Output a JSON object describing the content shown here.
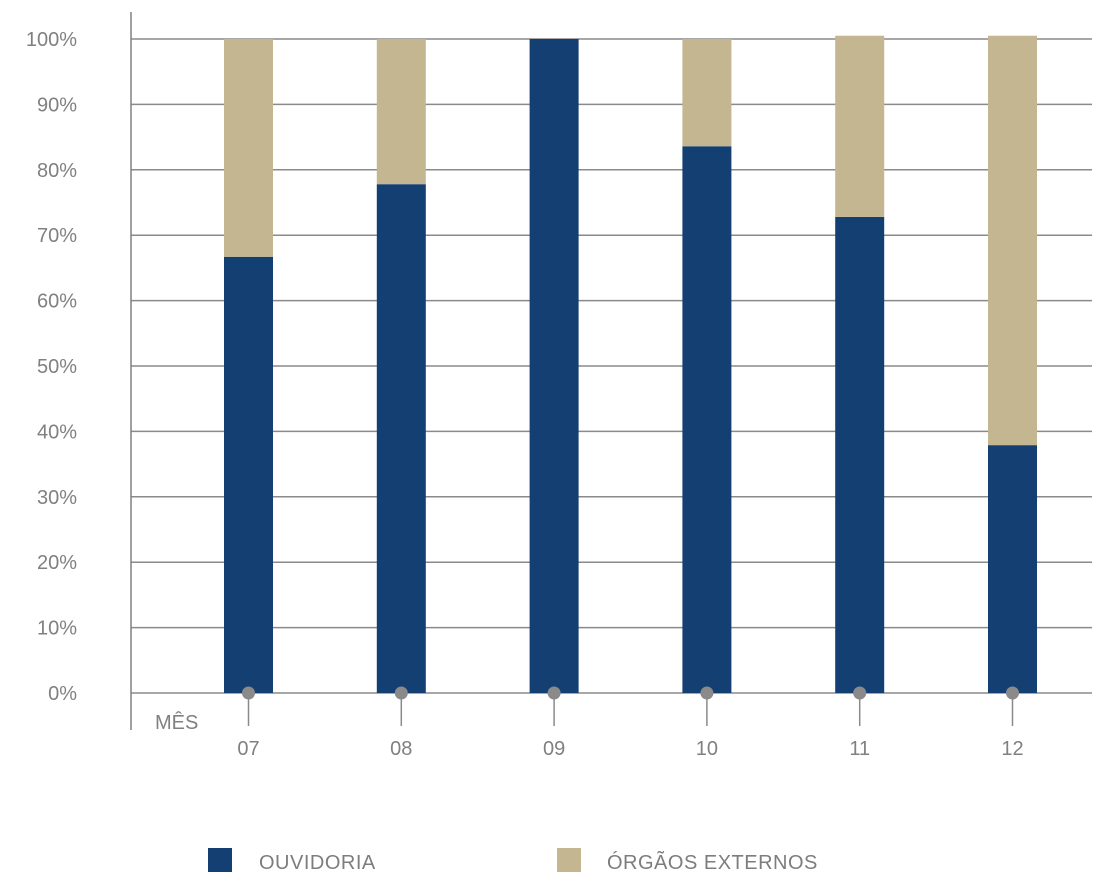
{
  "chart_data": {
    "type": "bar",
    "stacked": true,
    "xlabel": "MÊS",
    "categories": [
      "07",
      "08",
      "09",
      "10",
      "11",
      "12"
    ],
    "series": [
      {
        "name": "OUVIDORIA",
        "color": "#143f72",
        "values": [
          66.7,
          77.8,
          100,
          83.6,
          72.8,
          37.9
        ]
      },
      {
        "name": "ÓRGÃOS EXTERNOS",
        "color": "#c4b690",
        "values": [
          33.3,
          22.2,
          0,
          16.4,
          27.7,
          62.6
        ]
      }
    ],
    "yticks": [
      "0%",
      "10%",
      "20%",
      "30%",
      "40%",
      "50%",
      "60%",
      "70%",
      "80%",
      "90%",
      "100%"
    ],
    "ylim": [
      0,
      100
    ],
    "grid": true,
    "legend_position": "bottom"
  }
}
